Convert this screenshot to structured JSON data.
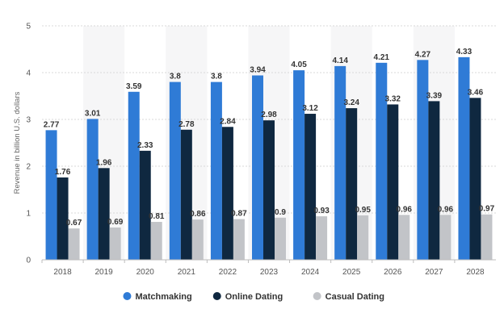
{
  "chart_data": {
    "type": "bar",
    "title": "",
    "xlabel": "",
    "ylabel": "Revenue in billion U.S. dollars",
    "ylim": [
      0,
      5
    ],
    "yticks": [
      0,
      1,
      2,
      3,
      4,
      5
    ],
    "grid": "horizontal-dashed",
    "legend_position": "bottom-center",
    "categories": [
      "2018",
      "2019",
      "2020",
      "2021",
      "2022",
      "2023",
      "2024",
      "2025",
      "2026",
      "2027",
      "2028"
    ],
    "series": [
      {
        "name": "Matchmaking",
        "color": "#2f7bd6",
        "values": [
          2.77,
          3.01,
          3.59,
          3.8,
          3.8,
          3.94,
          4.05,
          4.14,
          4.21,
          4.27,
          4.33
        ]
      },
      {
        "name": "Online Dating",
        "color": "#0f2840",
        "values": [
          1.76,
          1.96,
          2.33,
          2.78,
          2.84,
          2.98,
          3.12,
          3.24,
          3.32,
          3.39,
          3.46
        ]
      },
      {
        "name": "Casual Dating",
        "color": "#c2c4c8",
        "values": [
          0.67,
          0.69,
          0.81,
          0.86,
          0.87,
          0.9,
          0.93,
          0.95,
          0.96,
          0.96,
          0.97
        ]
      }
    ]
  }
}
